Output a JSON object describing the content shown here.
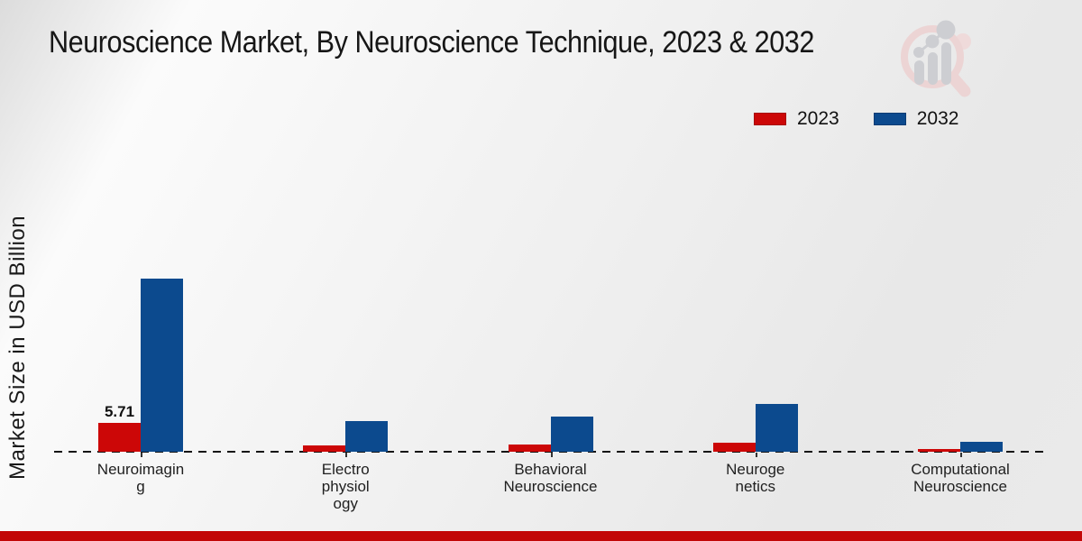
{
  "legend": {
    "items": [
      {
        "label": "2023",
        "color": "#cc0707"
      },
      {
        "label": "2032",
        "color": "#0c4a8e"
      }
    ]
  },
  "logo": {
    "icon": "magnifier-bar-chart-logo"
  },
  "footer": {
    "color": "#c20707"
  },
  "chart_data": {
    "type": "bar",
    "title": "Neuroscience Market, By Neuroscience Technique, 2023 & 2032",
    "xlabel": "",
    "ylabel": "Market Size in USD Billion",
    "categories": [
      "Neuroimaging",
      "Electrophysiology",
      "Behavioral Neuroscience",
      "Neurogenetics",
      "Computational Neuroscience"
    ],
    "category_label_lines": [
      [
        "Neuroimagin",
        "g"
      ],
      [
        "Electro",
        "physiol",
        "ogy"
      ],
      [
        "Behavioral",
        "Neuroscience"
      ],
      [
        "Neuroge",
        "netics"
      ],
      [
        "Computational",
        "Neuroscience"
      ]
    ],
    "series": [
      {
        "name": "2023",
        "color": "#cc0707",
        "values": [
          5.71,
          1.25,
          1.43,
          1.79,
          0.54
        ]
      },
      {
        "name": "2032",
        "color": "#0c4a8e",
        "values": [
          34.3,
          6.07,
          6.96,
          9.46,
          1.96
        ]
      }
    ],
    "data_labels": [
      [
        "5.71",
        "",
        "",
        "",
        ""
      ],
      [
        "",
        "",
        "",
        "",
        ""
      ]
    ],
    "ylim": [
      0,
      36
    ],
    "grid": false,
    "legend_position": "top-right",
    "axis_style": "dashed-baseline-only"
  }
}
